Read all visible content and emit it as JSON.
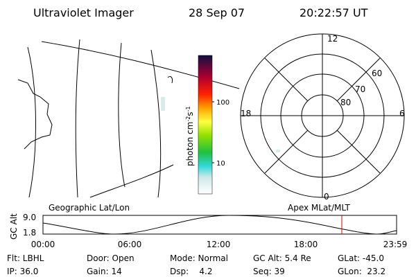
{
  "header": {
    "instrument": "Ultraviolet Imager",
    "date": "28 Sep 07",
    "time": "20:22:57 UT"
  },
  "colorbar": {
    "ticks": [
      "100",
      "10"
    ],
    "unit": [
      "photon cm",
      "-2",
      "s",
      "-1"
    ]
  },
  "polar": {
    "mlt_labels": [
      "12",
      "6",
      "0",
      "18"
    ],
    "lat_labels": [
      "60",
      "70",
      "80"
    ]
  },
  "panel_labels": [
    "Geographic Lat/Lon",
    "Apex MLat/MLT"
  ],
  "timeline": {
    "y_label": "GC Alt",
    "y_ticks": [
      "9.0",
      "1.8"
    ],
    "x_ticks": [
      "00:00",
      "06:00",
      "12:00",
      "18:00",
      "23:59"
    ]
  },
  "status": [
    [
      "Flt: LBHL",
      "Door: Open",
      "Mode: Normal",
      "GC Alt: 5.4 Re",
      "GLat: -45.0"
    ],
    [
      "IP: 36.0",
      "Gain: 14",
      "Dsp:    4.2",
      "Seq: 39",
      "GLon:  23.2"
    ]
  ]
}
